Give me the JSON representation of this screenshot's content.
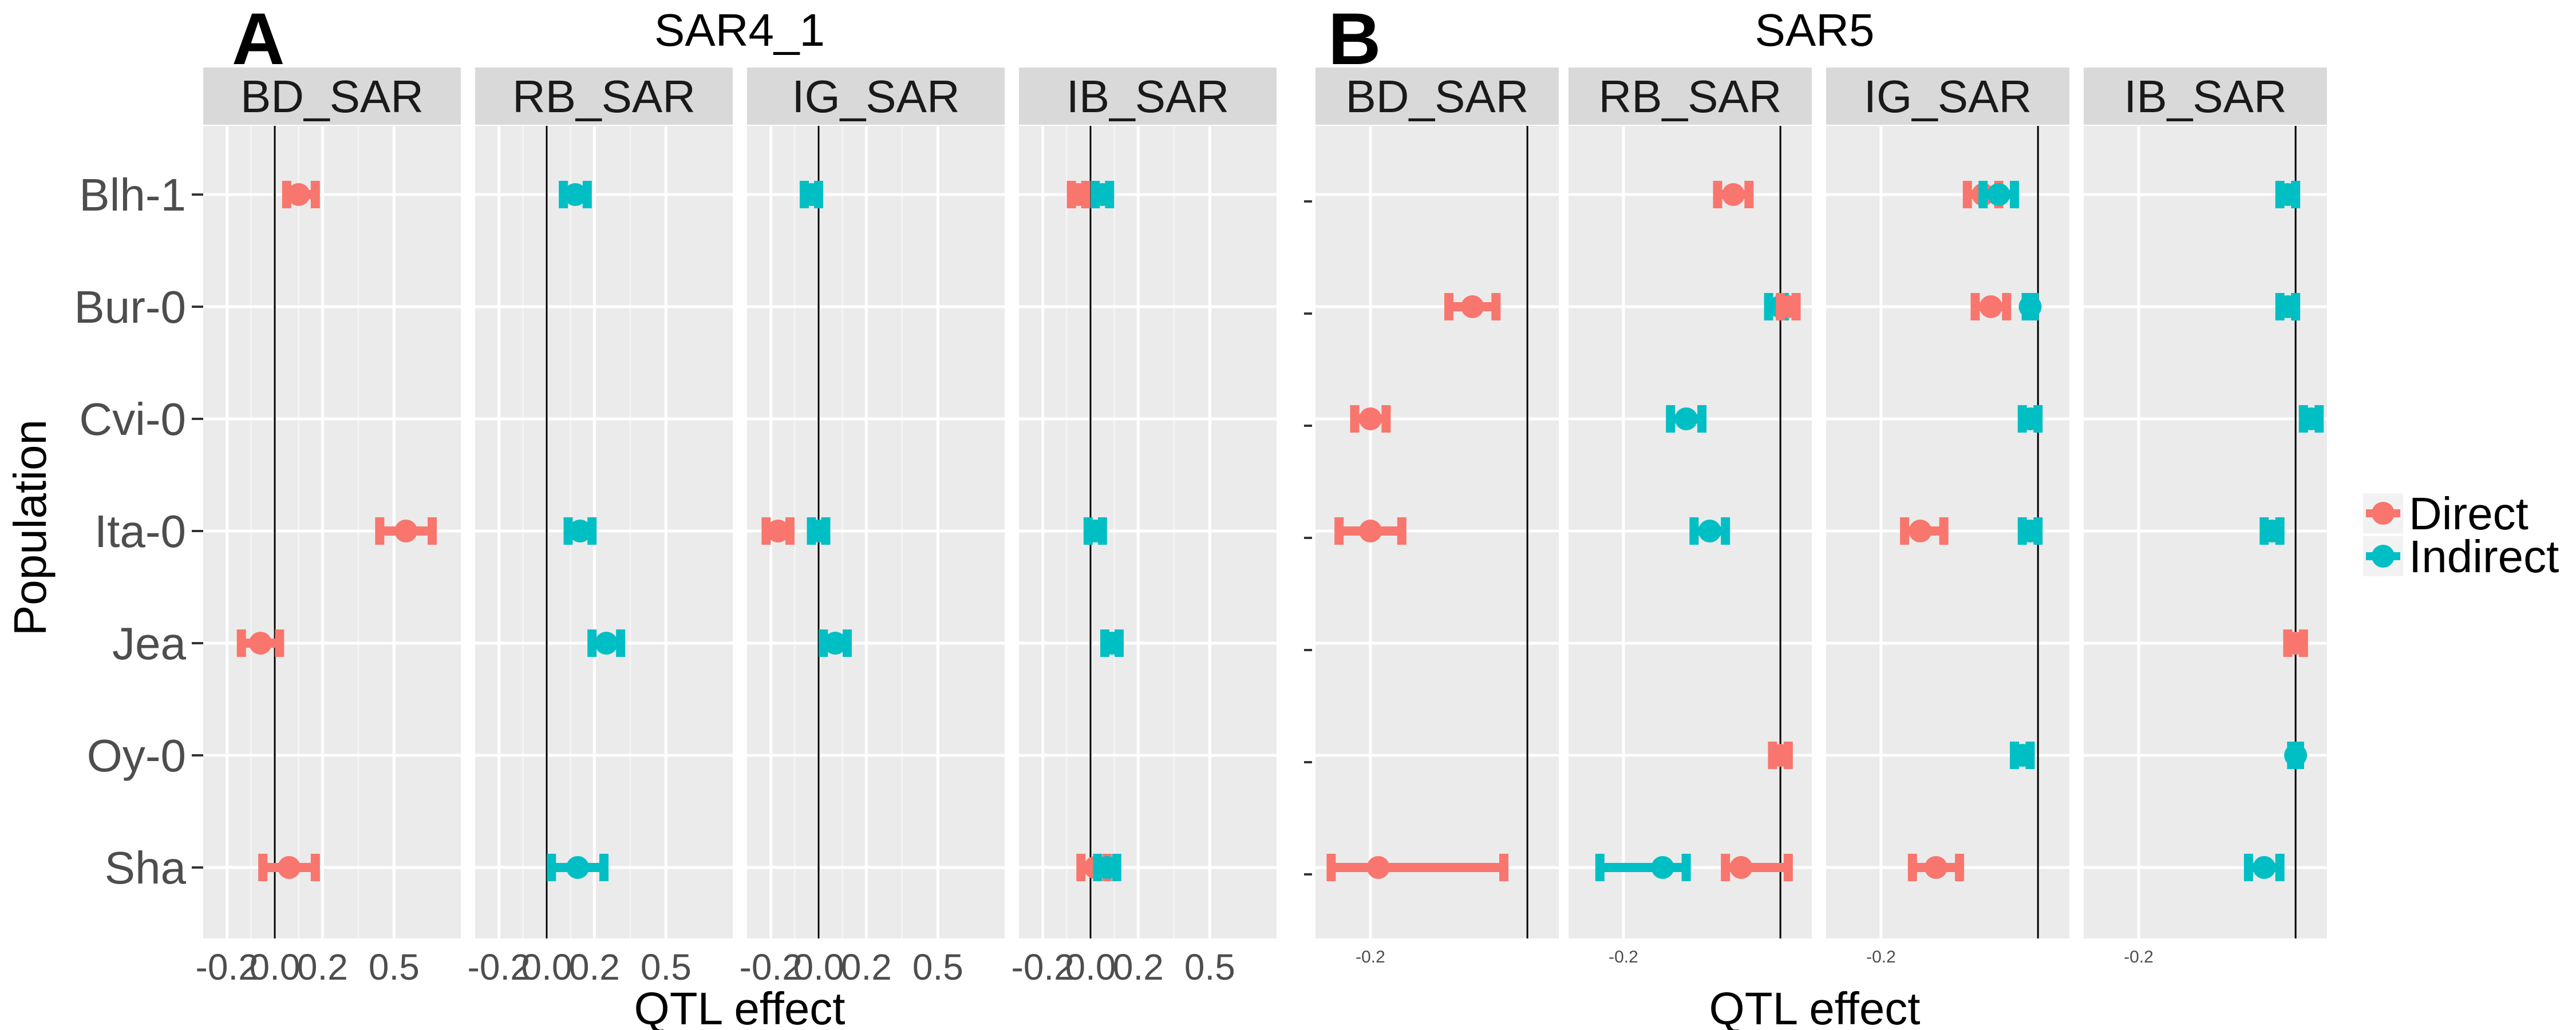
{
  "colors": {
    "Direct": "#f8766d",
    "Indirect": "#00bfc4",
    "panel": "#ebebeb",
    "strip": "#d9d9d9"
  },
  "legend": {
    "items": [
      "Direct",
      "Indirect"
    ],
    "position": "right"
  },
  "ylabel": "Population",
  "populations": [
    "Blh-1",
    "Bur-0",
    "Cvi-0",
    "Ita-0",
    "Jea",
    "Oy-0",
    "Sha"
  ],
  "chart_data": [
    {
      "type": "scatter",
      "letter": "A",
      "title": "SAR4_1",
      "xlabel": "QTL effect",
      "xlim": [
        -0.3,
        0.78
      ],
      "xticks": [
        -0.2,
        0.0,
        0.2,
        0.5
      ],
      "xtick_labels": [
        "-0.2",
        "0.0",
        "0.2",
        "0.5"
      ],
      "grid": true,
      "facets": [
        {
          "name": "BD_SAR",
          "points": [
            {
              "pop": "Blh-1",
              "series": "Direct",
              "x": 0.1,
              "lo": 0.05,
              "hi": 0.17
            },
            {
              "pop": "Ita-0",
              "series": "Direct",
              "x": 0.55,
              "lo": 0.44,
              "hi": 0.66
            },
            {
              "pop": "Jea",
              "series": "Direct",
              "x": -0.06,
              "lo": -0.14,
              "hi": 0.02
            },
            {
              "pop": "Sha",
              "series": "Direct",
              "x": 0.06,
              "lo": -0.05,
              "hi": 0.17
            }
          ]
        },
        {
          "name": "RB_SAR",
          "points": [
            {
              "pop": "Blh-1",
              "series": "Indirect",
              "x": 0.12,
              "lo": 0.07,
              "hi": 0.17
            },
            {
              "pop": "Ita-0",
              "series": "Indirect",
              "x": 0.14,
              "lo": 0.09,
              "hi": 0.19
            },
            {
              "pop": "Jea",
              "series": "Indirect",
              "x": 0.25,
              "lo": 0.19,
              "hi": 0.31
            },
            {
              "pop": "Sha",
              "series": "Indirect",
              "x": 0.13,
              "lo": 0.02,
              "hi": 0.24
            }
          ]
        },
        {
          "name": "IG_SAR",
          "points": [
            {
              "pop": "Blh-1",
              "series": "Indirect",
              "x": -0.03,
              "lo": -0.06,
              "hi": 0.0
            },
            {
              "pop": "Ita-0",
              "series": "Direct",
              "x": -0.17,
              "lo": -0.22,
              "hi": -0.12
            },
            {
              "pop": "Ita-0",
              "series": "Indirect",
              "x": 0.0,
              "lo": -0.03,
              "hi": 0.03
            },
            {
              "pop": "Jea",
              "series": "Indirect",
              "x": 0.07,
              "lo": 0.02,
              "hi": 0.12
            }
          ]
        },
        {
          "name": "IB_SAR",
          "points": [
            {
              "pop": "Blh-1",
              "series": "Direct",
              "x": -0.05,
              "lo": -0.08,
              "hi": -0.02
            },
            {
              "pop": "Blh-1",
              "series": "Indirect",
              "x": 0.05,
              "lo": 0.02,
              "hi": 0.08
            },
            {
              "pop": "Ita-0",
              "series": "Indirect",
              "x": 0.02,
              "lo": -0.01,
              "hi": 0.05
            },
            {
              "pop": "Jea",
              "series": "Indirect",
              "x": 0.09,
              "lo": 0.06,
              "hi": 0.12
            },
            {
              "pop": "Sha",
              "series": "Direct",
              "x": 0.02,
              "lo": -0.04,
              "hi": 0.07
            },
            {
              "pop": "Sha",
              "series": "Indirect",
              "x": 0.07,
              "lo": 0.03,
              "hi": 0.11
            }
          ]
        }
      ]
    },
    {
      "type": "scatter",
      "letter": "B",
      "title": "SAR5",
      "xlabel": "QTL effect",
      "xlim": [
        -0.27,
        0.04
      ],
      "xticks": [
        -0.2
      ],
      "xtick_labels": [
        "-0.2"
      ],
      "zero_line": 0.0,
      "grid": true,
      "facets": [
        {
          "name": "BD_SAR",
          "points": [
            {
              "pop": "Bur-0",
              "series": "Direct",
              "x": -0.07,
              "lo": -0.1,
              "hi": -0.04
            },
            {
              "pop": "Cvi-0",
              "series": "Direct",
              "x": -0.2,
              "lo": -0.22,
              "hi": -0.18
            },
            {
              "pop": "Ita-0",
              "series": "Direct",
              "x": -0.2,
              "lo": -0.24,
              "hi": -0.16
            },
            {
              "pop": "Sha",
              "series": "Direct",
              "x": -0.19,
              "lo": -0.25,
              "hi": -0.03
            }
          ]
        },
        {
          "name": "RB_SAR",
          "points": [
            {
              "pop": "Blh-1",
              "series": "Direct",
              "x": -0.06,
              "lo": -0.08,
              "hi": -0.04
            },
            {
              "pop": "Bur-0",
              "series": "Indirect",
              "x": 0.0,
              "lo": -0.015,
              "hi": 0.005
            },
            {
              "pop": "Bur-0",
              "series": "Direct",
              "x": 0.01,
              "lo": 0.0,
              "hi": 0.02
            },
            {
              "pop": "Cvi-0",
              "series": "Indirect",
              "x": -0.12,
              "lo": -0.14,
              "hi": -0.1
            },
            {
              "pop": "Ita-0",
              "series": "Indirect",
              "x": -0.09,
              "lo": -0.11,
              "hi": -0.07
            },
            {
              "pop": "Oy-0",
              "series": "Direct",
              "x": 0.0,
              "lo": -0.01,
              "hi": 0.01
            },
            {
              "pop": "Sha",
              "series": "Indirect",
              "x": -0.15,
              "lo": -0.23,
              "hi": -0.12
            },
            {
              "pop": "Sha",
              "series": "Direct",
              "x": -0.05,
              "lo": -0.07,
              "hi": 0.01
            }
          ]
        },
        {
          "name": "IG_SAR",
          "points": [
            {
              "pop": "Blh-1",
              "series": "Direct",
              "x": -0.07,
              "lo": -0.09,
              "hi": -0.05
            },
            {
              "pop": "Blh-1",
              "series": "Indirect",
              "x": -0.05,
              "lo": -0.07,
              "hi": -0.03
            },
            {
              "pop": "Bur-0",
              "series": "Direct",
              "x": -0.06,
              "lo": -0.08,
              "hi": -0.04
            },
            {
              "pop": "Bur-0",
              "series": "Indirect",
              "x": -0.01,
              "lo": -0.015,
              "hi": -0.005
            },
            {
              "pop": "Cvi-0",
              "series": "Indirect",
              "x": -0.01,
              "lo": -0.02,
              "hi": 0.0
            },
            {
              "pop": "Ita-0",
              "series": "Direct",
              "x": -0.15,
              "lo": -0.17,
              "hi": -0.12
            },
            {
              "pop": "Ita-0",
              "series": "Indirect",
              "x": -0.01,
              "lo": -0.02,
              "hi": 0.0
            },
            {
              "pop": "Oy-0",
              "series": "Indirect",
              "x": -0.02,
              "lo": -0.03,
              "hi": -0.01
            },
            {
              "pop": "Sha",
              "series": "Direct",
              "x": -0.13,
              "lo": -0.16,
              "hi": -0.1
            }
          ]
        },
        {
          "name": "IB_SAR",
          "points": [
            {
              "pop": "Blh-1",
              "series": "Indirect",
              "x": -0.01,
              "lo": -0.02,
              "hi": 0.0
            },
            {
              "pop": "Bur-0",
              "series": "Indirect",
              "x": -0.01,
              "lo": -0.02,
              "hi": 0.0
            },
            {
              "pop": "Cvi-0",
              "series": "Indirect",
              "x": 0.02,
              "lo": 0.01,
              "hi": 0.03
            },
            {
              "pop": "Ita-0",
              "series": "Indirect",
              "x": -0.03,
              "lo": -0.04,
              "hi": -0.02
            },
            {
              "pop": "Jea",
              "series": "Direct",
              "x": 0.0,
              "lo": -0.01,
              "hi": 0.01
            },
            {
              "pop": "Oy-0",
              "series": "Indirect",
              "x": 0.0,
              "lo": -0.005,
              "hi": 0.005
            },
            {
              "pop": "Sha",
              "series": "Indirect",
              "x": -0.04,
              "lo": -0.06,
              "hi": -0.02
            }
          ]
        }
      ]
    }
  ]
}
